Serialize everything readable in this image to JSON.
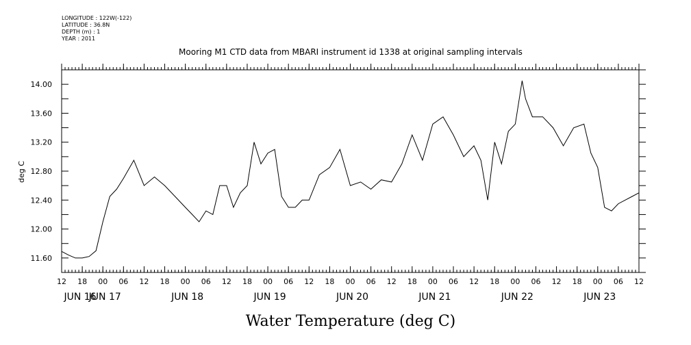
{
  "metadata": {
    "longitude": "LONGITUDE : 122W(-122)",
    "latitude": "LATITUDE : 36.8N",
    "depth": "DEPTH (m) : 1",
    "year": "YEAR : 2011"
  },
  "chart_data": {
    "type": "line",
    "title": "Mooring M1 CTD data from MBARI instrument id 1338 at original sampling intervals",
    "xlabel": "Water Temperature (deg C)",
    "ylabel": "deg C",
    "ylim": [
      11.4,
      14.2
    ],
    "xlim": [
      "2011-06-16 12:00",
      "2011-06-23 12:00"
    ],
    "y_ticks": [
      "11.60",
      "12.00",
      "12.40",
      "12.80",
      "13.20",
      "13.60",
      "14.00"
    ],
    "x_hour_ticks": [
      "12",
      "18",
      "00",
      "06",
      "12",
      "18",
      "00",
      "06",
      "12",
      "18",
      "00",
      "06",
      "12",
      "18",
      "00",
      "06",
      "12",
      "18",
      "00",
      "06",
      "12",
      "18",
      "00",
      "06",
      "12",
      "18",
      "00",
      "06",
      "12"
    ],
    "x_day_labels": [
      "JUN 16",
      "JUN 17",
      "JUN 18",
      "JUN 19",
      "JUN 20",
      "JUN 21",
      "JUN 22",
      "JUN 23"
    ],
    "grid": false,
    "series": [
      {
        "name": "",
        "x": [
          "2011-06-16 12:00",
          "2011-06-16 14:00",
          "2011-06-16 16:00",
          "2011-06-16 18:00",
          "2011-06-16 20:00",
          "2011-06-16 22:00",
          "2011-06-17 00:00",
          "2011-06-17 02:00",
          "2011-06-17 04:00",
          "2011-06-17 06:00",
          "2011-06-17 09:00",
          "2011-06-17 12:00",
          "2011-06-17 15:00",
          "2011-06-17 18:00",
          "2011-06-17 21:00",
          "2011-06-18 00:00",
          "2011-06-18 02:00",
          "2011-06-18 04:00",
          "2011-06-18 06:00",
          "2011-06-18 08:00",
          "2011-06-18 10:00",
          "2011-06-18 12:00",
          "2011-06-18 14:00",
          "2011-06-18 16:00",
          "2011-06-18 18:00",
          "2011-06-18 20:00",
          "2011-06-18 22:00",
          "2011-06-19 00:00",
          "2011-06-19 02:00",
          "2011-06-19 04:00",
          "2011-06-19 06:00",
          "2011-06-19 08:00",
          "2011-06-19 10:00",
          "2011-06-19 12:00",
          "2011-06-19 15:00",
          "2011-06-19 18:00",
          "2011-06-19 21:00",
          "2011-06-20 00:00",
          "2011-06-20 03:00",
          "2011-06-20 06:00",
          "2011-06-20 09:00",
          "2011-06-20 12:00",
          "2011-06-20 15:00",
          "2011-06-20 18:00",
          "2011-06-20 21:00",
          "2011-06-21 00:00",
          "2011-06-21 03:00",
          "2011-06-21 06:00",
          "2011-06-21 09:00",
          "2011-06-21 12:00",
          "2011-06-21 14:00",
          "2011-06-21 16:00",
          "2011-06-21 18:00",
          "2011-06-21 20:00",
          "2011-06-21 22:00",
          "2011-06-22 00:00",
          "2011-06-22 02:00",
          "2011-06-22 03:00",
          "2011-06-22 05:00",
          "2011-06-22 08:00",
          "2011-06-22 11:00",
          "2011-06-22 14:00",
          "2011-06-22 17:00",
          "2011-06-22 20:00",
          "2011-06-22 22:00",
          "2011-06-23 00:00",
          "2011-06-23 02:00",
          "2011-06-23 04:00",
          "2011-06-23 06:00",
          "2011-06-23 08:00",
          "2011-06-23 10:00",
          "2011-06-23 12:00"
        ],
        "values": [
          11.69,
          11.64,
          11.6,
          11.6,
          11.62,
          11.7,
          12.1,
          12.45,
          12.55,
          12.7,
          12.95,
          12.6,
          12.72,
          12.6,
          12.45,
          12.3,
          12.2,
          12.1,
          12.25,
          12.2,
          12.6,
          12.6,
          12.3,
          12.5,
          12.6,
          13.2,
          12.9,
          13.05,
          13.1,
          12.45,
          12.3,
          12.3,
          12.4,
          12.4,
          12.75,
          12.85,
          13.1,
          12.6,
          12.65,
          12.55,
          12.68,
          12.65,
          12.9,
          13.3,
          12.95,
          13.45,
          13.55,
          13.3,
          13.0,
          13.15,
          12.95,
          12.4,
          13.2,
          12.9,
          13.35,
          13.45,
          14.05,
          13.8,
          13.55,
          13.55,
          13.4,
          13.15,
          13.4,
          13.45,
          13.05,
          12.85,
          12.3,
          12.25,
          12.35,
          12.4,
          12.45,
          12.5
        ]
      }
    ]
  }
}
